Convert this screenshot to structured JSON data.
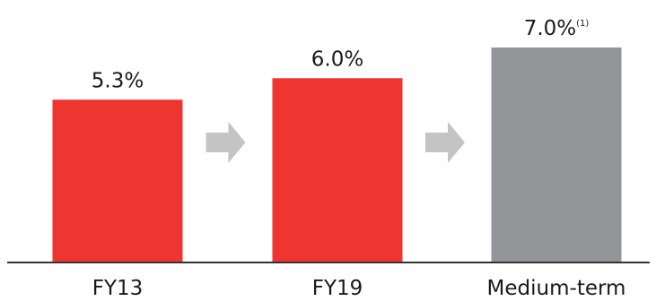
{
  "chart_data": {
    "type": "bar",
    "categories": [
      "FY13",
      "FY19",
      "Medium-term"
    ],
    "values": [
      5.3,
      6.0,
      7.0
    ],
    "value_labels": [
      "5.3%",
      "6.0%",
      "7.0%"
    ],
    "value_label_superscripts": [
      "",
      "",
      "(1)"
    ],
    "unit": "%",
    "bar_colors": [
      "#ee3530",
      "#ee3530",
      "#939598"
    ],
    "arrow_color": "#c4c4c4",
    "axis_color": "#333333",
    "ylim": [
      0,
      7.0
    ],
    "grid": false,
    "legend": "none"
  }
}
